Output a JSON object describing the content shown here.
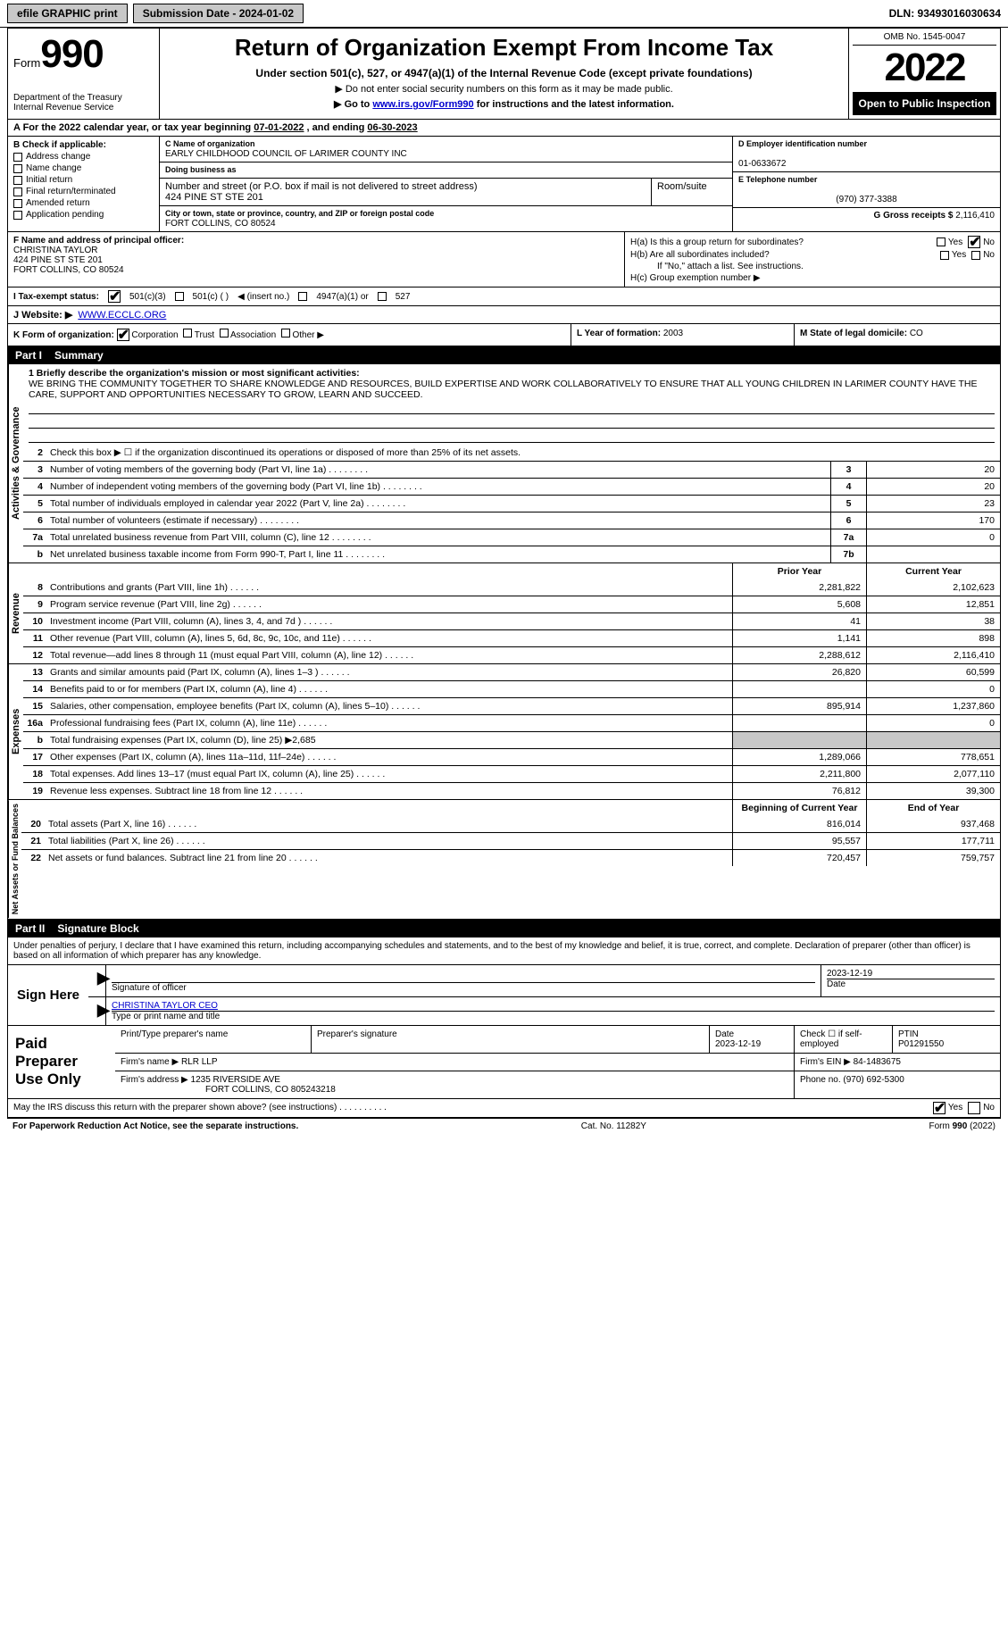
{
  "topbar": {
    "efile_label": "efile GRAPHIC print",
    "submission_label": "Submission Date - 2024-01-02",
    "dln_label": "DLN: 93493016030634"
  },
  "header": {
    "form_prefix": "Form",
    "form_number": "990",
    "title": "Return of Organization Exempt From Income Tax",
    "subtitle": "Under section 501(c), 527, or 4947(a)(1) of the Internal Revenue Code (except private foundations)",
    "ssn_note": "▶ Do not enter social security numbers on this form as it may be made public.",
    "goto_prefix": "▶ Go to ",
    "goto_link": "www.irs.gov/Form990",
    "goto_suffix": " for instructions and the latest information.",
    "dept": "Department of the Treasury",
    "irs": "Internal Revenue Service",
    "omb": "OMB No. 1545-0047",
    "year": "2022",
    "open_public": "Open to Public Inspection"
  },
  "row_a": {
    "prefix": "A For the 2022 calendar year, or tax year beginning ",
    "begin": "07-01-2022",
    "mid": "    , and ending ",
    "end": "06-30-2023"
  },
  "col_b": {
    "header": "B Check if applicable:",
    "items": [
      "Address change",
      "Name change",
      "Initial return",
      "Final return/terminated",
      "Amended return",
      "Application pending"
    ]
  },
  "col_c": {
    "name_label": "C Name of organization",
    "name": "EARLY CHILDHOOD COUNCIL OF LARIMER COUNTY INC",
    "dba_label": "Doing business as",
    "addr_label": "Number and street (or P.O. box if mail is not delivered to street address)",
    "room_label": "Room/suite",
    "addr": "424 PINE ST STE 201",
    "city_label": "City or town, state or province, country, and ZIP or foreign postal code",
    "city": "FORT COLLINS, CO  80524"
  },
  "col_d": {
    "ein_label": "D Employer identification number",
    "ein": "01-0633672",
    "phone_label": "E Telephone number",
    "phone": "(970) 377-3388",
    "gross_label": "G Gross receipts $ ",
    "gross": "2,116,410"
  },
  "row_f": {
    "label": "F Name and address of principal officer:",
    "name": "CHRISTINA TAYLOR",
    "addr1": "424 PINE ST STE 201",
    "addr2": "FORT COLLINS, CO  80524"
  },
  "row_h": {
    "ha": "H(a)  Is this a group return for subordinates?",
    "hb": "H(b)  Are all subordinates included?",
    "hb_note": "If \"No,\" attach a list. See instructions.",
    "hc": "H(c)  Group exemption number ▶",
    "yes": "Yes",
    "no": "No"
  },
  "row_i": {
    "label": "I Tax-exempt status:",
    "c3": "501(c)(3)",
    "c": "501(c) ( )",
    "insert": "◀ (insert no.)",
    "a1": "4947(a)(1) or",
    "s527": "527"
  },
  "row_j": {
    "label": "J Website: ▶",
    "value": "WWW.ECCLC.ORG"
  },
  "row_k": {
    "label": "K Form of organization:",
    "opts": [
      "Corporation",
      "Trust",
      "Association",
      "Other ▶"
    ]
  },
  "row_l": {
    "label": "L Year of formation: ",
    "value": "2003"
  },
  "row_m": {
    "label": "M State of legal domicile: ",
    "value": "CO"
  },
  "parts": {
    "p1": "Part I",
    "p1_title": "Summary",
    "p2": "Part II",
    "p2_title": "Signature Block"
  },
  "sidelabels": {
    "ag": "Activities & Governance",
    "rev": "Revenue",
    "exp": "Expenses",
    "nafb": "Net Assets or Fund Balances"
  },
  "mission": {
    "line1_label": "1  Briefly describe the organization's mission or most significant activities:",
    "text": "WE BRING THE COMMUNITY TOGETHER TO SHARE KNOWLEDGE AND RESOURCES, BUILD EXPERTISE AND WORK COLLABORATIVELY TO ENSURE THAT ALL YOUNG CHILDREN IN LARIMER COUNTY HAVE THE CARE, SUPPORT AND OPPORTUNITIES NECESSARY TO GROW, LEARN AND SUCCEED."
  },
  "summary_lines_ag": [
    {
      "n": "2",
      "d": "Check this box ▶ ☐  if the organization discontinued its operations or disposed of more than 25% of its net assets."
    },
    {
      "n": "3",
      "d": "Number of voting members of the governing body (Part VI, line 1a)",
      "box": "3",
      "v": "20"
    },
    {
      "n": "4",
      "d": "Number of independent voting members of the governing body (Part VI, line 1b)",
      "box": "4",
      "v": "20"
    },
    {
      "n": "5",
      "d": "Total number of individuals employed in calendar year 2022 (Part V, line 2a)",
      "box": "5",
      "v": "23"
    },
    {
      "n": "6",
      "d": "Total number of volunteers (estimate if necessary)",
      "box": "6",
      "v": "170"
    },
    {
      "n": "7a",
      "d": "Total unrelated business revenue from Part VIII, column (C), line 12",
      "box": "7a",
      "v": "0"
    },
    {
      "n": "b",
      "d": "Net unrelated business taxable income from Form 990-T, Part I, line 11",
      "box": "7b",
      "v": ""
    }
  ],
  "cols_hdr": {
    "prior": "Prior Year",
    "current": "Current Year",
    "begin": "Beginning of Current Year",
    "end": "End of Year"
  },
  "summary_rev": [
    {
      "n": "8",
      "d": "Contributions and grants (Part VIII, line 1h)",
      "p": "2,281,822",
      "c": "2,102,623"
    },
    {
      "n": "9",
      "d": "Program service revenue (Part VIII, line 2g)",
      "p": "5,608",
      "c": "12,851"
    },
    {
      "n": "10",
      "d": "Investment income (Part VIII, column (A), lines 3, 4, and 7d )",
      "p": "41",
      "c": "38"
    },
    {
      "n": "11",
      "d": "Other revenue (Part VIII, column (A), lines 5, 6d, 8c, 9c, 10c, and 11e)",
      "p": "1,141",
      "c": "898"
    },
    {
      "n": "12",
      "d": "Total revenue—add lines 8 through 11 (must equal Part VIII, column (A), line 12)",
      "p": "2,288,612",
      "c": "2,116,410"
    }
  ],
  "summary_exp": [
    {
      "n": "13",
      "d": "Grants and similar amounts paid (Part IX, column (A), lines 1–3 )",
      "p": "26,820",
      "c": "60,599"
    },
    {
      "n": "14",
      "d": "Benefits paid to or for members (Part IX, column (A), line 4)",
      "p": "",
      "c": "0"
    },
    {
      "n": "15",
      "d": "Salaries, other compensation, employee benefits (Part IX, column (A), lines 5–10)",
      "p": "895,914",
      "c": "1,237,860"
    },
    {
      "n": "16a",
      "d": "Professional fundraising fees (Part IX, column (A), line 11e)",
      "p": "",
      "c": "0"
    },
    {
      "n": "b",
      "d": "Total fundraising expenses (Part IX, column (D), line 25) ▶2,685",
      "shade": true
    },
    {
      "n": "17",
      "d": "Other expenses (Part IX, column (A), lines 11a–11d, 11f–24e)",
      "p": "1,289,066",
      "c": "778,651"
    },
    {
      "n": "18",
      "d": "Total expenses. Add lines 13–17 (must equal Part IX, column (A), line 25)",
      "p": "2,211,800",
      "c": "2,077,110"
    },
    {
      "n": "19",
      "d": "Revenue less expenses. Subtract line 18 from line 12",
      "p": "76,812",
      "c": "39,300"
    }
  ],
  "summary_nafb": [
    {
      "n": "20",
      "d": "Total assets (Part X, line 16)",
      "p": "816,014",
      "c": "937,468"
    },
    {
      "n": "21",
      "d": "Total liabilities (Part X, line 26)",
      "p": "95,557",
      "c": "177,711"
    },
    {
      "n": "22",
      "d": "Net assets or fund balances. Subtract line 21 from line 20",
      "p": "720,457",
      "c": "759,757"
    }
  ],
  "sig": {
    "intro": "Under penalties of perjury, I declare that I have examined this return, including accompanying schedules and statements, and to the best of my knowledge and belief, it is true, correct, and complete. Declaration of preparer (other than officer) is based on all information of which preparer has any knowledge.",
    "sign_here": "Sign Here",
    "sig_of_officer": "Signature of officer",
    "date": "2023-12-19",
    "date_label": "Date",
    "name_title": "CHRISTINA TAYLOR CEO",
    "type_label": "Type or print name and title"
  },
  "paid": {
    "label": "Paid Preparer Use Only",
    "h_print": "Print/Type preparer's name",
    "h_sig": "Preparer's signature",
    "h_date": "Date",
    "date": "2023-12-19",
    "h_check": "Check ☐ if self-employed",
    "h_ptin": "PTIN",
    "ptin": "P01291550",
    "firm_name_label": "Firm's name    ▶",
    "firm_name": "RLR LLP",
    "firm_ein_label": "Firm's EIN ▶",
    "firm_ein": "84-1483675",
    "firm_addr_label": "Firm's address ▶",
    "firm_addr1": "1235 RIVERSIDE AVE",
    "firm_addr2": "FORT COLLINS, CO  805243218",
    "phone_label": "Phone no.",
    "phone": "(970) 692-5300"
  },
  "footer": {
    "discuss": "May the IRS discuss this return with the preparer shown above? (see instructions)",
    "yes": "Yes",
    "no": "No",
    "pra": "For Paperwork Reduction Act Notice, see the separate instructions.",
    "cat": "Cat. No. 11282Y",
    "form": "Form 990 (2022)"
  }
}
